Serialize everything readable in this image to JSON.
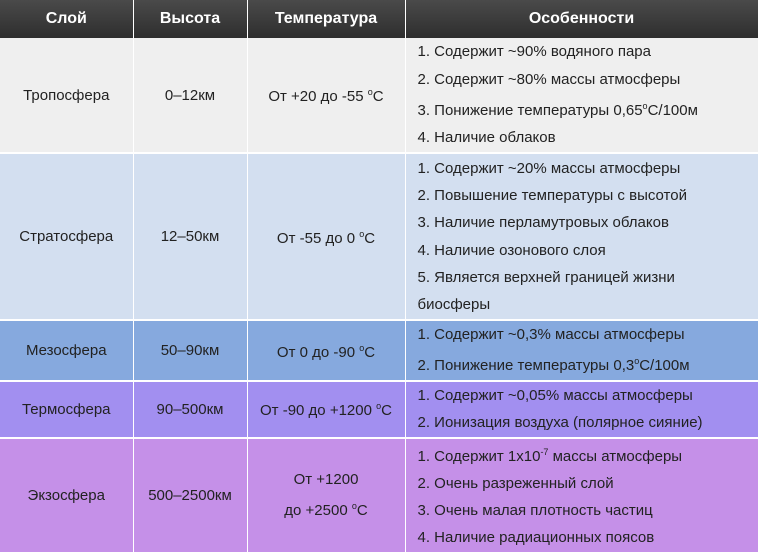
{
  "table": {
    "header": [
      "Слой",
      "Высота",
      "Температура",
      "Особенности"
    ],
    "rows": [
      {
        "layer": "Тропосфера",
        "height": "0–12км",
        "temperature": [
          [
            "От +20 до -55 ",
            {
              "sup": "о"
            },
            "С"
          ]
        ],
        "features": [
          "1. Содержит ~90% водяного пара",
          "2. Содержит ~80% массы атмосферы",
          [
            "3. Понижение температуры 0,65",
            {
              "sup": "о"
            },
            "С/100м"
          ],
          "4. Наличие облаков"
        ]
      },
      {
        "layer": "Стратосфера",
        "height": "12–50км",
        "temperature": [
          [
            "От -55 до 0 ",
            {
              "sup": "о"
            },
            "С"
          ]
        ],
        "features": [
          "1. Содержит ~20% массы атмосферы",
          "2. Повышение температуры с высотой",
          "3. Наличие перламутровых облаков",
          "4. Наличие озонового слоя",
          "5. Является верхней границей жизни",
          "биосферы"
        ]
      },
      {
        "layer": "Мезосфера",
        "height": "50–90км",
        "temperature": [
          [
            "От 0 до -90 ",
            {
              "sup": "о"
            },
            "С"
          ]
        ],
        "features": [
          "1. Содержит ~0,3% массы атмосферы",
          [
            "2. Понижение температуры 0,3",
            {
              "sup": "о"
            },
            "С/100м"
          ]
        ]
      },
      {
        "layer": "Термосфера",
        "height": "90–500км",
        "temperature": [
          [
            "От -90 до +1200 ",
            {
              "sup": "о"
            },
            "С"
          ]
        ],
        "features": [
          "1. Содержит ~0,05% массы атмосферы",
          "2. Ионизация воздуха (полярное сияние)"
        ]
      },
      {
        "layer": "Экзосфера",
        "height": "500–2500км",
        "temperature": [
          "От +1200",
          [
            "до +2500 ",
            {
              "sup": "о"
            },
            "С"
          ]
        ],
        "features": [
          [
            "1. Содержит 1х10",
            {
              "sup": "-7"
            },
            " массы атмосферы"
          ],
          "2. Очень разреженный слой",
          "3. Очень малая плотность частиц",
          "4. Наличие радиационных поясов"
        ]
      }
    ]
  }
}
